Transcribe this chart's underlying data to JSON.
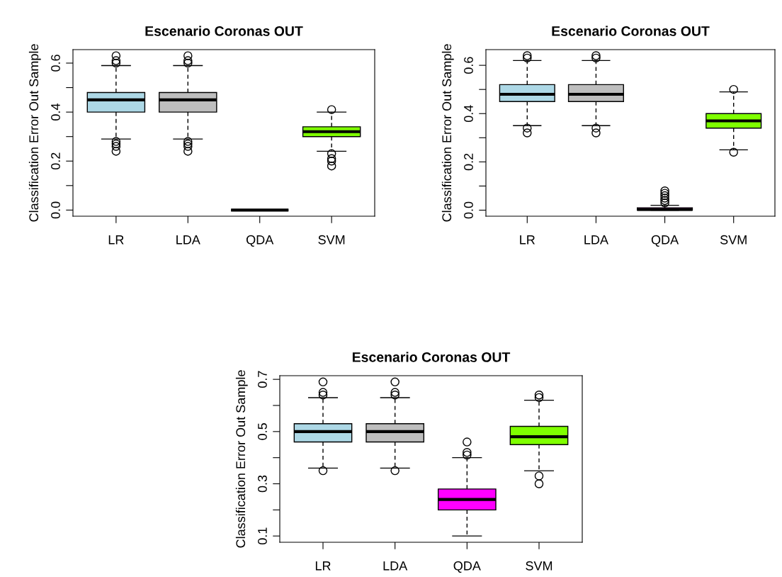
{
  "chart_data": [
    {
      "type": "box",
      "title": "Escenario Coronas OUT",
      "ylabel": "Classification Error Out Sample",
      "categories": [
        "LR",
        "LDA",
        "QDA",
        "SVM"
      ],
      "colors": [
        "#add8e6",
        "#bebebe",
        "#000000",
        "#7fff00"
      ],
      "ylim": [
        -0.025,
        0.655
      ],
      "yticks": [
        {
          "value": 0.0,
          "label": "0.0"
        },
        {
          "value": 0.1,
          "label": null
        },
        {
          "value": 0.2,
          "label": "0.2"
        },
        {
          "value": 0.3,
          "label": null
        },
        {
          "value": 0.4,
          "label": "0.4"
        },
        {
          "value": 0.5,
          "label": null
        },
        {
          "value": 0.6,
          "label": "0.6"
        }
      ],
      "grid": false,
      "boxes": [
        {
          "low": 0.29,
          "q1": 0.4,
          "median": 0.45,
          "q3": 0.48,
          "high": 0.59,
          "outliers": [
            0.6,
            0.61,
            0.63,
            0.28,
            0.27,
            0.26,
            0.24
          ]
        },
        {
          "low": 0.29,
          "q1": 0.4,
          "median": 0.45,
          "q3": 0.48,
          "high": 0.59,
          "outliers": [
            0.6,
            0.61,
            0.63,
            0.28,
            0.27,
            0.26,
            0.24
          ]
        },
        {
          "low": 0.0,
          "q1": 0.0,
          "median": 0.0,
          "q3": 0.0,
          "high": 0.0
        },
        {
          "low": 0.24,
          "q1": 0.3,
          "median": 0.32,
          "q3": 0.34,
          "high": 0.4,
          "outliers": [
            0.41,
            0.23,
            0.21,
            0.2,
            0.18
          ]
        }
      ]
    },
    {
      "type": "box",
      "title": "Escenario Coronas OUT",
      "ylabel": "Classification Error Out Sample",
      "categories": [
        "LR",
        "LDA",
        "QDA",
        "SVM"
      ],
      "colors": [
        "#add8e6",
        "#bebebe",
        "#ff00ff",
        "#7fff00"
      ],
      "ylim": [
        -0.025,
        0.665
      ],
      "yticks": [
        {
          "value": 0.0,
          "label": "0.0"
        },
        {
          "value": 0.1,
          "label": null
        },
        {
          "value": 0.2,
          "label": "0.2"
        },
        {
          "value": 0.3,
          "label": null
        },
        {
          "value": 0.4,
          "label": "0.4"
        },
        {
          "value": 0.5,
          "label": null
        },
        {
          "value": 0.6,
          "label": "0.6"
        }
      ],
      "grid": false,
      "boxes": [
        {
          "low": 0.35,
          "q1": 0.45,
          "median": 0.48,
          "q3": 0.52,
          "high": 0.62,
          "outliers": [
            0.63,
            0.64,
            0.34,
            0.32
          ]
        },
        {
          "low": 0.35,
          "q1": 0.45,
          "median": 0.48,
          "q3": 0.52,
          "high": 0.62,
          "outliers": [
            0.63,
            0.64,
            0.34,
            0.32
          ]
        },
        {
          "low": 0.0,
          "q1": 0.0,
          "median": 0.003,
          "q3": 0.01,
          "high": 0.02,
          "outliers": [
            0.03,
            0.04,
            0.05,
            0.06,
            0.07,
            0.08
          ]
        },
        {
          "low": 0.25,
          "q1": 0.34,
          "median": 0.37,
          "q3": 0.4,
          "high": 0.49,
          "outliers": [
            0.5,
            0.24
          ]
        }
      ]
    },
    {
      "type": "box",
      "title": "Escenario Coronas OUT",
      "ylabel": "Classification Error Out Sample",
      "categories": [
        "LR",
        "LDA",
        "QDA",
        "SVM"
      ],
      "colors": [
        "#add8e6",
        "#bebebe",
        "#ff00ff",
        "#7fff00"
      ],
      "ylim": [
        0.076,
        0.714
      ],
      "yticks": [
        0.1,
        {
          "value": 0.2,
          "label": null
        },
        0.3,
        {
          "value": 0.4,
          "label": null
        },
        0.5,
        {
          "value": 0.6,
          "label": null
        },
        0.7
      ],
      "grid": false,
      "boxes": [
        {
          "low": 0.36,
          "q1": 0.46,
          "median": 0.5,
          "q3": 0.53,
          "high": 0.63,
          "outliers": [
            0.69,
            0.65,
            0.64,
            0.35
          ]
        },
        {
          "low": 0.36,
          "q1": 0.46,
          "median": 0.5,
          "q3": 0.53,
          "high": 0.63,
          "outliers": [
            0.69,
            0.65,
            0.64,
            0.35
          ]
        },
        {
          "low": 0.1,
          "q1": 0.2,
          "median": 0.24,
          "q3": 0.28,
          "high": 0.4,
          "outliers": [
            0.46,
            0.42,
            0.41
          ]
        },
        {
          "low": 0.35,
          "q1": 0.45,
          "median": 0.48,
          "q3": 0.52,
          "high": 0.62,
          "outliers": [
            0.64,
            0.63,
            0.33,
            0.3
          ]
        }
      ]
    }
  ]
}
